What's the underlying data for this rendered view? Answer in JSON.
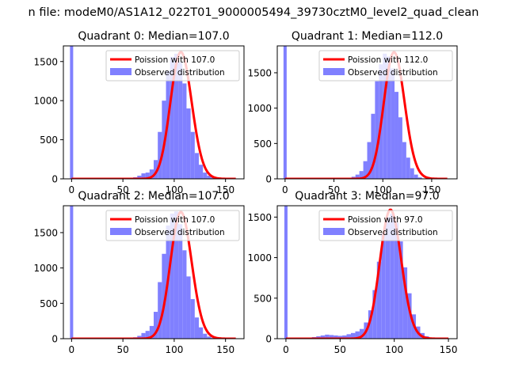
{
  "figure": {
    "suptitle": "n file: modeM0/AS1A12_022T01_9000005494_39730cztM0_level2_quad_clean"
  },
  "chart_data": [
    {
      "type": "bar",
      "title": "Quadrant 0: Median=107.0",
      "xlim": [
        -8,
        168
      ],
      "ylim": [
        0,
        1700
      ],
      "xticks": [
        0,
        50,
        100,
        150
      ],
      "yticks": [
        0,
        500,
        1000,
        1500
      ],
      "zero_spike": 1700,
      "hist": {
        "start": 60,
        "step": 4,
        "counts": [
          20,
          40,
          70,
          80,
          120,
          240,
          600,
          1000,
          1380,
          1560,
          1600,
          1490,
          1220,
          900,
          600,
          330,
          180,
          80,
          40,
          15,
          5
        ]
      },
      "poisson": {
        "mu": 107.0,
        "xmax": 160,
        "scale": 1620
      },
      "legend": {
        "fit": "Poission with 107.0",
        "observed": "Observed distribution",
        "position": "upper right"
      },
      "colors": {
        "fit": "#ff0000",
        "observed": "#8080ff"
      }
    },
    {
      "type": "bar",
      "title": "Quadrant 1: Median=112.0",
      "xlim": [
        -8,
        176
      ],
      "ylim": [
        0,
        1880
      ],
      "xticks": [
        0,
        50,
        100,
        150
      ],
      "yticks": [
        0,
        500,
        1000,
        1500
      ],
      "zero_spike": 1880,
      "hist": {
        "start": 64,
        "step": 4,
        "counts": [
          10,
          30,
          60,
          110,
          250,
          520,
          920,
          1380,
          1620,
          1770,
          1730,
          1560,
          1230,
          870,
          520,
          300,
          150,
          60,
          20
        ]
      },
      "poisson": {
        "mu": 112.0,
        "xmax": 166,
        "scale": 1790
      },
      "legend": {
        "fit": "Poission with 112.0",
        "observed": "Observed distribution",
        "position": "upper right"
      },
      "colors": {
        "fit": "#ff0000",
        "observed": "#8080ff"
      }
    },
    {
      "type": "bar",
      "title": "Quadrant 2: Median=107.0",
      "xlim": [
        -8,
        168
      ],
      "ylim": [
        0,
        1880
      ],
      "xticks": [
        0,
        50,
        100,
        150
      ],
      "yticks": [
        0,
        500,
        1000,
        1500
      ],
      "zero_spike": 1880,
      "hist": {
        "start": 60,
        "step": 4,
        "counts": [
          20,
          40,
          80,
          110,
          180,
          380,
          800,
          1200,
          1600,
          1770,
          1800,
          1620,
          1250,
          880,
          560,
          300,
          160,
          70,
          30,
          10
        ]
      },
      "poisson": {
        "mu": 107.0,
        "xmax": 160,
        "scale": 1790
      },
      "legend": {
        "fit": "Poission with 107.0",
        "observed": "Observed distribution",
        "position": "upper right"
      },
      "colors": {
        "fit": "#ff0000",
        "observed": "#8080ff"
      }
    },
    {
      "type": "bar",
      "title": "Quadrant 3: Median=97.0",
      "xlim": [
        -8,
        158
      ],
      "ylim": [
        0,
        1640
      ],
      "xticks": [
        0,
        50,
        100,
        150
      ],
      "yticks": [
        0,
        500,
        1000,
        1500
      ],
      "zero_spike": 1640,
      "hist": {
        "start": 20,
        "step": 4,
        "counts": [
          10,
          20,
          30,
          40,
          50,
          45,
          40,
          35,
          40,
          55,
          70,
          90,
          120,
          200,
          350,
          600,
          950,
          1300,
          1500,
          1540,
          1430,
          1200,
          880,
          560,
          300,
          150,
          70,
          30,
          10
        ]
      },
      "poisson": {
        "mu": 97.0,
        "xmax": 150,
        "scale": 1590
      },
      "legend": {
        "fit": "Poission with 97.0",
        "observed": "Observed distribution",
        "position": "upper right"
      },
      "colors": {
        "fit": "#ff0000",
        "observed": "#8080ff"
      }
    }
  ]
}
